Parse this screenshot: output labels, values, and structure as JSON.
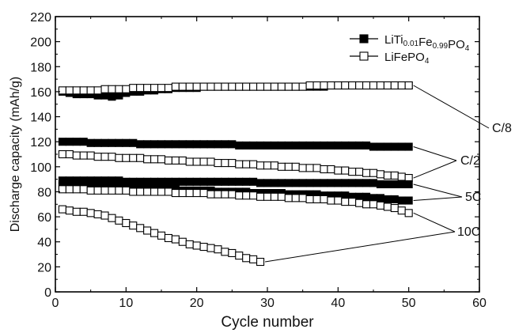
{
  "chart_data": {
    "type": "scatter",
    "xlabel": "Cycle number",
    "ylabel": "Discharge capacity (mAh/g)",
    "xlim": [
      0,
      60
    ],
    "ylim": [
      0,
      220
    ],
    "xticks": [
      0,
      10,
      20,
      30,
      40,
      50,
      60
    ],
    "yticks": [
      0,
      20,
      40,
      60,
      80,
      100,
      120,
      140,
      160,
      180,
      200,
      220
    ],
    "grid": false,
    "legend_position": "top-right",
    "legend": [
      {
        "marker": "filled-square",
        "parts": [
          {
            "t": "LiTi",
            "sub": false
          },
          {
            "t": "0.01",
            "sub": true
          },
          {
            "t": "Fe",
            "sub": false
          },
          {
            "t": "0.99",
            "sub": true
          },
          {
            "t": "PO",
            "sub": false
          },
          {
            "t": "4",
            "sub": true
          }
        ]
      },
      {
        "marker": "open-square",
        "parts": [
          {
            "t": "LiFePO",
            "sub": false
          },
          {
            "t": "4",
            "sub": true
          }
        ]
      }
    ],
    "rate_labels": [
      "C/8",
      "C/2",
      "5C",
      "10C"
    ],
    "series": [
      {
        "material": "LiTi0.01Fe0.99PO4",
        "rate": "C/8",
        "marker": "filled",
        "x": [
          1,
          2,
          3,
          4,
          5,
          6,
          7,
          8,
          9,
          10,
          11,
          12,
          13,
          14,
          15,
          16,
          17,
          18,
          19,
          20,
          21,
          22,
          23,
          24,
          25,
          26,
          27,
          28,
          29,
          30,
          31,
          32,
          33,
          34,
          35,
          36,
          37,
          38,
          39,
          40,
          41,
          42,
          43,
          44,
          45,
          46,
          47,
          48,
          49,
          50
        ],
        "y": [
          160,
          159,
          158,
          158,
          158,
          157,
          157,
          156,
          157,
          159,
          160,
          160,
          161,
          161,
          162,
          162,
          163,
          163,
          163,
          163,
          164,
          164,
          164,
          164,
          164,
          164,
          164,
          164,
          164,
          164,
          164,
          164,
          164,
          164,
          164,
          164,
          164,
          164,
          165,
          165,
          165,
          165,
          165,
          165,
          165,
          165,
          165,
          165,
          165,
          165
        ]
      },
      {
        "material": "LiFePO4",
        "rate": "C/8",
        "marker": "open",
        "x": [
          1,
          2,
          3,
          4,
          5,
          6,
          7,
          8,
          9,
          10,
          11,
          12,
          13,
          14,
          15,
          16,
          17,
          18,
          19,
          20,
          21,
          22,
          23,
          24,
          25,
          26,
          27,
          28,
          29,
          30,
          31,
          32,
          33,
          34,
          35,
          36,
          37,
          38,
          39,
          40,
          41,
          42,
          43,
          44,
          45,
          46,
          47,
          48,
          49,
          50
        ],
        "y": [
          161,
          161,
          161,
          161,
          161,
          161,
          162,
          162,
          162,
          162,
          163,
          163,
          163,
          163,
          163,
          163,
          164,
          164,
          164,
          164,
          164,
          164,
          164,
          164,
          164,
          164,
          164,
          164,
          164,
          164,
          164,
          164,
          164,
          164,
          164,
          165,
          165,
          165,
          165,
          165,
          165,
          165,
          165,
          165,
          165,
          165,
          165,
          165,
          165,
          165
        ]
      },
      {
        "material": "LiTi0.01Fe0.99PO4",
        "rate": "C/2",
        "marker": "filled",
        "x": [
          1,
          2,
          3,
          4,
          5,
          6,
          7,
          8,
          9,
          10,
          11,
          12,
          13,
          14,
          15,
          16,
          17,
          18,
          19,
          20,
          21,
          22,
          23,
          24,
          25,
          26,
          27,
          28,
          29,
          30,
          31,
          32,
          33,
          34,
          35,
          36,
          37,
          38,
          39,
          40,
          41,
          42,
          43,
          44,
          45,
          46,
          47,
          48,
          49,
          50
        ],
        "y": [
          120,
          120,
          120,
          120,
          119,
          119,
          119,
          119,
          119,
          119,
          119,
          118,
          118,
          118,
          118,
          118,
          118,
          118,
          118,
          118,
          118,
          118,
          118,
          118,
          118,
          117,
          117,
          117,
          117,
          117,
          117,
          117,
          117,
          117,
          117,
          117,
          117,
          117,
          117,
          117,
          117,
          117,
          117,
          117,
          116,
          116,
          116,
          116,
          116,
          116
        ]
      },
      {
        "material": "LiFePO4",
        "rate": "C/2",
        "marker": "open",
        "x": [
          1,
          2,
          3,
          4,
          5,
          6,
          7,
          8,
          9,
          10,
          11,
          12,
          13,
          14,
          15,
          16,
          17,
          18,
          19,
          20,
          21,
          22,
          23,
          24,
          25,
          26,
          27,
          28,
          29,
          30,
          31,
          32,
          33,
          34,
          35,
          36,
          37,
          38,
          39,
          40,
          41,
          42,
          43,
          44,
          45,
          46,
          47,
          48,
          49,
          50
        ],
        "y": [
          110,
          110,
          109,
          109,
          109,
          108,
          108,
          108,
          107,
          107,
          107,
          107,
          106,
          106,
          106,
          105,
          105,
          105,
          104,
          104,
          104,
          104,
          103,
          103,
          103,
          102,
          102,
          102,
          101,
          101,
          101,
          100,
          100,
          100,
          99,
          99,
          99,
          98,
          98,
          97,
          97,
          96,
          96,
          95,
          95,
          94,
          93,
          93,
          92,
          91
        ]
      },
      {
        "material": "LiTi0.01Fe0.99PO4",
        "rate": "5C",
        "marker": "filled",
        "x": [
          1,
          2,
          3,
          4,
          5,
          6,
          7,
          8,
          9,
          10,
          11,
          12,
          13,
          14,
          15,
          16,
          17,
          18,
          19,
          20,
          21,
          22,
          23,
          24,
          25,
          26,
          27,
          28,
          29,
          30,
          31,
          32,
          33,
          34,
          35,
          36,
          37,
          38,
          39,
          40,
          41,
          42,
          43,
          44,
          45,
          46,
          47,
          48,
          49,
          50
        ],
        "y": [
          89,
          89,
          89,
          89,
          89,
          89,
          89,
          89,
          89,
          88,
          88,
          88,
          88,
          88,
          88,
          88,
          88,
          88,
          88,
          88,
          88,
          88,
          88,
          88,
          88,
          88,
          88,
          88,
          87,
          87,
          87,
          87,
          87,
          87,
          87,
          87,
          87,
          87,
          87,
          87,
          87,
          87,
          87,
          87,
          87,
          86,
          86,
          86,
          86,
          86
        ]
      },
      {
        "material": "LiTi0.01Fe0.99PO4",
        "rate": "10C",
        "marker": "filled",
        "x": [
          1,
          2,
          3,
          4,
          5,
          6,
          7,
          8,
          9,
          10,
          11,
          12,
          13,
          14,
          15,
          16,
          17,
          18,
          19,
          20,
          21,
          22,
          23,
          24,
          25,
          26,
          27,
          28,
          29,
          30,
          31,
          32,
          33,
          34,
          35,
          36,
          37,
          38,
          39,
          40,
          41,
          42,
          43,
          44,
          45,
          46,
          47,
          48,
          49,
          50
        ],
        "y": [
          85,
          85,
          85,
          84,
          84,
          84,
          84,
          83,
          83,
          83,
          83,
          83,
          82,
          82,
          82,
          82,
          82,
          81,
          81,
          81,
          81,
          81,
          80,
          80,
          80,
          80,
          80,
          79,
          79,
          79,
          79,
          79,
          78,
          78,
          78,
          78,
          78,
          77,
          77,
          77,
          77,
          76,
          76,
          76,
          75,
          75,
          74,
          74,
          73,
          73
        ]
      },
      {
        "material": "LiFePO4",
        "rate": "5C",
        "marker": "open",
        "x": [
          1,
          2,
          3,
          4,
          5,
          6,
          7,
          8,
          9,
          10,
          11,
          12,
          13,
          14,
          15,
          16,
          17,
          18,
          19,
          20,
          21,
          22,
          23,
          24,
          25,
          26,
          27,
          28,
          29,
          30,
          31,
          32,
          33,
          34,
          35,
          36,
          37,
          38,
          39,
          40,
          41,
          42,
          43,
          44,
          45,
          46,
          47,
          48,
          49,
          50
        ],
        "y": [
          82,
          82,
          82,
          82,
          81,
          81,
          81,
          81,
          81,
          81,
          80,
          80,
          80,
          80,
          80,
          80,
          79,
          79,
          79,
          79,
          79,
          78,
          78,
          78,
          78,
          77,
          77,
          77,
          76,
          76,
          76,
          76,
          75,
          75,
          75,
          74,
          74,
          74,
          73,
          73,
          72,
          72,
          71,
          70,
          70,
          69,
          68,
          67,
          65,
          63
        ]
      },
      {
        "material": "LiFePO4",
        "rate": "10C",
        "marker": "open",
        "x": [
          1,
          2,
          3,
          4,
          5,
          6,
          7,
          8,
          9,
          10,
          11,
          12,
          13,
          14,
          15,
          16,
          17,
          18,
          19,
          20,
          21,
          22,
          23,
          24,
          25,
          26,
          27,
          28,
          29
        ],
        "y": [
          66,
          65,
          64,
          64,
          63,
          62,
          61,
          59,
          57,
          55,
          53,
          51,
          49,
          47,
          45,
          43,
          42,
          40,
          38,
          37,
          36,
          35,
          34,
          32,
          31,
          29,
          27,
          26,
          24
        ]
      }
    ],
    "callouts": [
      {
        "label": "C/8",
        "targets": [
          [
            50,
            165
          ]
        ]
      },
      {
        "label": "C/2",
        "targets": [
          [
            50,
            116
          ],
          [
            50,
            91
          ]
        ]
      },
      {
        "label": "5C",
        "targets": [
          [
            50,
            86
          ],
          [
            50,
            73
          ]
        ]
      },
      {
        "label": "10C",
        "targets": [
          [
            50,
            63
          ],
          [
            29,
            24
          ]
        ]
      }
    ]
  }
}
